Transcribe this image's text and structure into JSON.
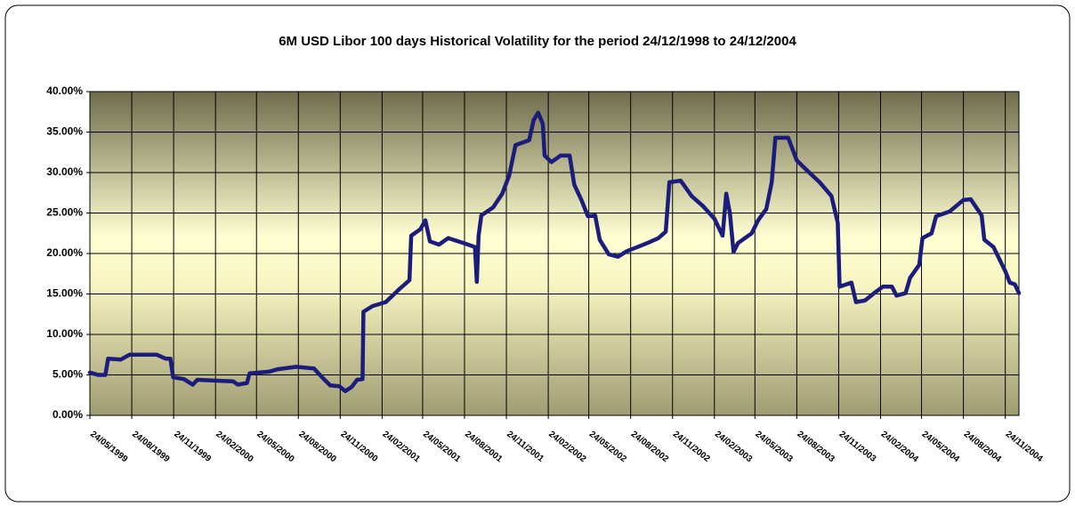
{
  "chart_data": {
    "type": "line",
    "title": "6M USD Libor 100 days Historical Volatility for the period 24/12/1998 to 24/12/2004",
    "color": "#1c1c7c",
    "grid": true,
    "xlim": [
      "24/05/1999",
      "24/12/2004"
    ],
    "xticks": [
      "24/05/1999",
      "24/08/1999",
      "24/11/1999",
      "24/02/2000",
      "24/05/2000",
      "24/08/2000",
      "24/11/2000",
      "24/02/2001",
      "24/05/2001",
      "24/08/2001",
      "24/11/2001",
      "24/02/2002",
      "24/05/2002",
      "24/08/2002",
      "24/11/2002",
      "24/02/2003",
      "24/05/2003",
      "24/08/2003",
      "24/11/2003",
      "24/02/2004",
      "24/05/2004",
      "24/08/2004",
      "24/11/2004"
    ],
    "ylim": [
      0,
      40
    ],
    "yticks": [
      {
        "value": 0,
        "label": "0.00%"
      },
      {
        "value": 5,
        "label": "5.00%"
      },
      {
        "value": 10,
        "label": "10.00%"
      },
      {
        "value": 15,
        "label": "15.00%"
      },
      {
        "value": 20,
        "label": "20.00%"
      },
      {
        "value": 25,
        "label": "25.00%"
      },
      {
        "value": 30,
        "label": "30.00%"
      },
      {
        "value": 35,
        "label": "35.00%"
      },
      {
        "value": 40,
        "label": "40.00%"
      }
    ],
    "x": [
      "24/05/1999",
      "11/06/1999",
      "27/06/1999",
      "03/07/1999",
      "31/07/1999",
      "19/08/1999",
      "18/10/1999",
      "07/11/1999",
      "17/11/1999",
      "23/11/1999",
      "16/12/1999",
      "05/01/2000",
      "15/01/2000",
      "03/04/2000",
      "13/04/2000",
      "03/05/2000",
      "09/05/2000",
      "20/06/2000",
      "10/07/2000",
      "19/08/2000",
      "27/09/2000",
      "17/10/2000",
      "02/11/2000",
      "22/11/2000",
      "05/12/2000",
      "19/12/2000",
      "31/12/2000",
      "12/01/2001",
      "14/01/2001",
      "03/02/2001",
      "04/03/2001",
      "03/04/2001",
      "25/04/2001",
      "29/04/2001",
      "19/05/2001",
      "30/05/2001",
      "09/06/2001",
      "29/06/2001",
      "19/07/2001",
      "27/08/2001",
      "16/09/2001",
      "20/09/2001",
      "24/09/2001",
      "30/09/2001",
      "26/10/2001",
      "15/11/2001",
      "30/11/2001",
      "14/12/2001",
      "13/01/2002",
      "23/01/2002",
      "02/02/2002",
      "12/02/2002",
      "16/02/2002",
      "03/03/2002",
      "23/03/2002",
      "12/04/2002",
      "22/04/2002",
      "08/05/2002",
      "22/05/2002",
      "07/06/2002",
      "17/06/2002",
      "07/07/2002",
      "27/07/2002",
      "16/08/2002",
      "08/09/2002",
      "04/10/2002",
      "24/10/2002",
      "09/11/2002",
      "17/11/2002",
      "12/12/2002",
      "05/01/2003",
      "31/01/2003",
      "24/02/2003",
      "14/03/2003",
      "22/03/2003",
      "30/03/2003",
      "07/04/2003",
      "17/04/2003",
      "17/05/2003",
      "31/05/2003",
      "18/06/2003",
      "30/06/2003",
      "08/07/2003",
      "05/08/2003",
      "24/08/2003",
      "13/09/2003",
      "13/10/2003",
      "08/11/2003",
      "22/11/2003",
      "26/11/2003",
      "22/12/2003",
      "01/01/2004",
      "21/01/2004",
      "10/02/2004",
      "29/02/2004",
      "20/03/2004",
      "30/03/2004",
      "19/04/2004",
      "29/04/2004",
      "19/05/2004",
      "26/05/2004",
      "15/06/2004",
      "25/06/2004",
      "25/07/2004",
      "24/08/2004",
      "09/09/2004",
      "03/10/2004",
      "09/10/2004",
      "29/10/2004",
      "24/11/2004",
      "04/12/2004",
      "15/12/2004",
      "24/12/2004"
    ],
    "values": [
      5.3,
      5.0,
      5.0,
      7.0,
      6.9,
      7.5,
      7.5,
      7.0,
      7.0,
      4.7,
      4.5,
      3.8,
      4.4,
      4.2,
      3.8,
      4.0,
      5.2,
      5.4,
      5.7,
      6.0,
      5.8,
      4.6,
      3.7,
      3.6,
      3.0,
      3.5,
      4.4,
      4.5,
      12.8,
      13.5,
      14.0,
      15.6,
      16.7,
      22.2,
      23.0,
      24.1,
      21.5,
      21.1,
      21.9,
      21.2,
      20.8,
      16.5,
      22.2,
      24.7,
      25.7,
      27.4,
      29.6,
      33.4,
      34.0,
      36.5,
      37.4,
      36.0,
      32.1,
      31.3,
      32.1,
      32.1,
      28.5,
      26.6,
      24.6,
      24.7,
      21.7,
      19.9,
      19.6,
      20.3,
      20.8,
      21.4,
      21.9,
      22.7,
      28.8,
      29.0,
      27.1,
      25.8,
      24.3,
      22.2,
      27.4,
      25.0,
      20.2,
      21.3,
      22.5,
      24.1,
      25.5,
      28.8,
      34.3,
      34.3,
      31.5,
      30.4,
      28.8,
      27.1,
      23.8,
      15.9,
      16.4,
      14.0,
      14.2,
      15.1,
      15.9,
      15.9,
      14.8,
      15.1,
      17.0,
      18.6,
      21.9,
      22.5,
      24.6,
      25.2,
      26.6,
      26.7,
      24.7,
      21.7,
      20.8,
      17.8,
      16.4,
      16.2,
      15.1
    ]
  }
}
